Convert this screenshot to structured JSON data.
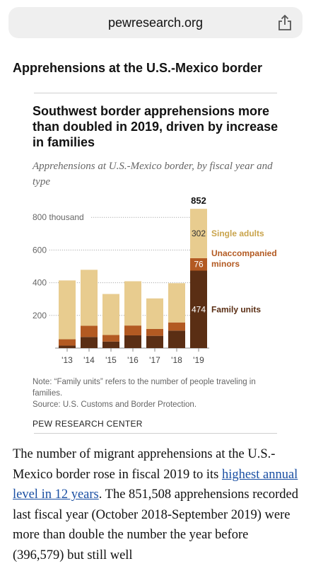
{
  "browser": {
    "url": "pewresearch.org"
  },
  "header": {
    "title": "Apprehensions at the U.S.-Mexico border"
  },
  "chart_data": {
    "type": "bar",
    "stacked": true,
    "title": "Southwest border apprehensions more than doubled in 2019, driven by increase in families",
    "subtitle": "Apprehensions at U.S.-Mexico border, by fiscal year and type",
    "categories": [
      "'13",
      "'14",
      "'15",
      "'16",
      "'17",
      "'18",
      "'19"
    ],
    "y_ticks": [
      "200",
      "400",
      "600",
      "800 thousand"
    ],
    "y_tick_values": [
      200,
      400,
      600,
      800
    ],
    "ylim": [
      0,
      860
    ],
    "series": [
      {
        "name": "Family units",
        "color": "#5a2e14",
        "values": [
          15,
          68,
          40,
          78,
          75,
          107,
          474
        ]
      },
      {
        "name": "Unaccompanied minors",
        "color": "#b35a22",
        "values": [
          39,
          69,
          40,
          60,
          42,
          50,
          76
        ]
      },
      {
        "name": "Single adults",
        "color": "#e8cc8f",
        "values": [
          360,
          342,
          251,
          271,
          187,
          240,
          302
        ]
      }
    ],
    "data_labels_2019": [
      "474",
      "76",
      "302"
    ],
    "total_label_2019": "852",
    "legend_labels": [
      "Single adults",
      "Unaccompanied minors",
      "Family units"
    ],
    "legend_label_color": "#c9a44c"
  },
  "footer": {
    "note": "Note: “Family units” refers to the number of people traveling in families.",
    "source": "Source: U.S. Customs and Border Protection.",
    "brand": "PEW RESEARCH CENTER"
  },
  "article": {
    "text_before": "The number of migrant apprehensions at the U.S.-Mexico border rose in fiscal 2019 to its ",
    "link": "highest annual level in 12 years",
    "text_after": ". The 851,508 apprehensions recorded last fiscal year (October 2018-September 2019) were more than double the number the year before (396,579) but still well"
  }
}
